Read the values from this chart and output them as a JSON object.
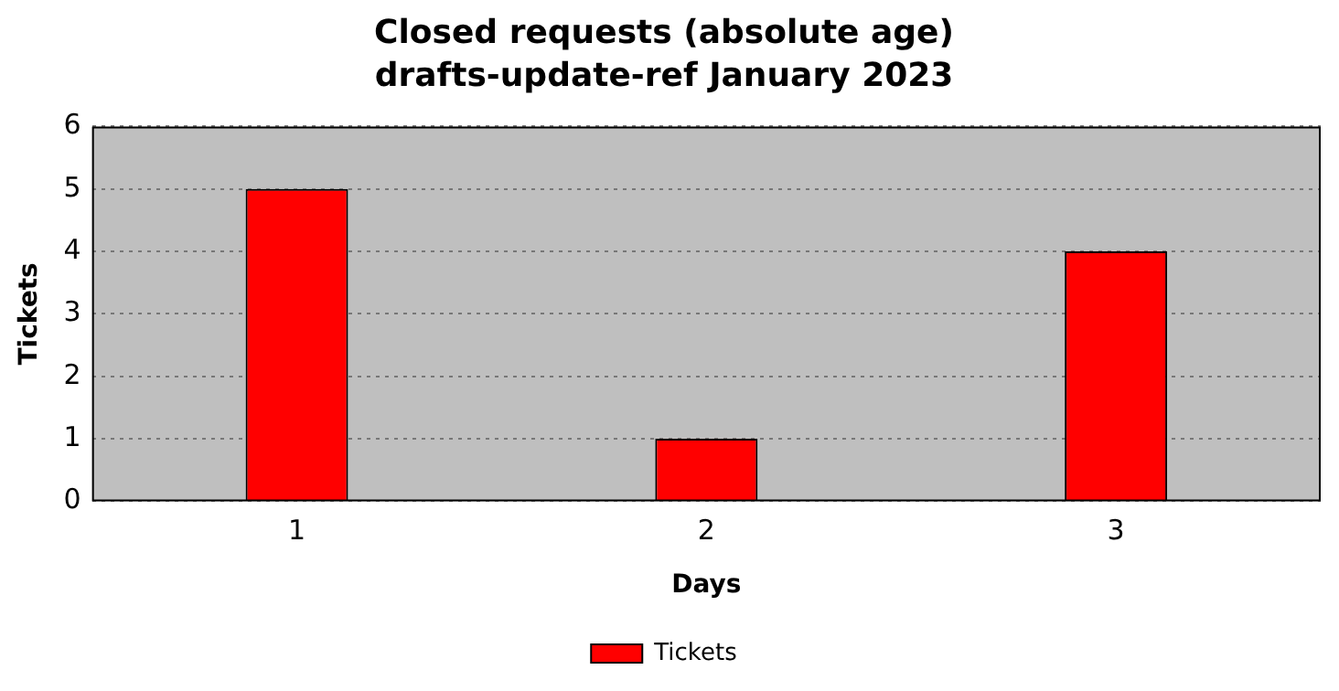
{
  "chart_data": {
    "type": "bar",
    "title": "Closed requests (absolute age)",
    "subtitle": "drafts-update-ref January 2023",
    "xlabel": "Days",
    "ylabel": "Tickets",
    "categories": [
      "1",
      "2",
      "3"
    ],
    "series": [
      {
        "name": "Tickets",
        "color": "#ff0000",
        "values": [
          5,
          1,
          4
        ]
      }
    ],
    "ylim": [
      0,
      6
    ],
    "yticks": [
      0,
      1,
      2,
      3,
      4,
      5,
      6
    ],
    "grid": "y",
    "legend": "bottom"
  }
}
